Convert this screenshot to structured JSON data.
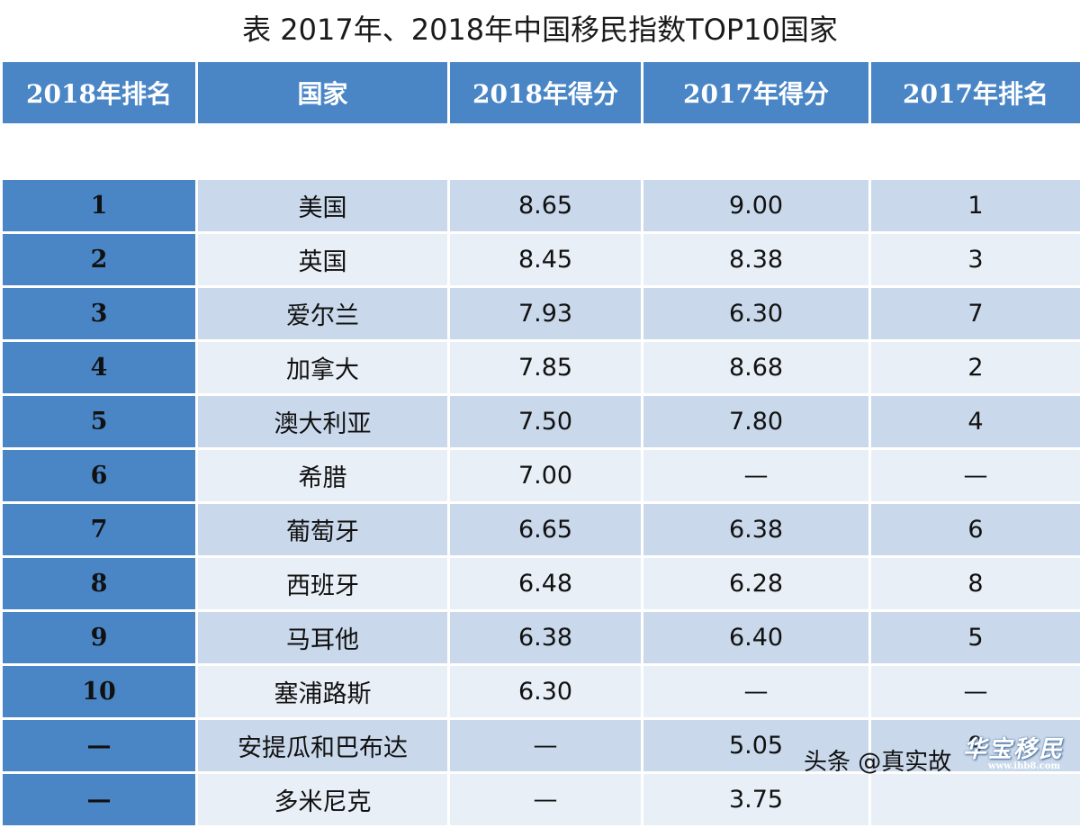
{
  "title": "表  2017年、2018年中国移民指数TOP10国家",
  "columns": [
    "2018年排名",
    "国家",
    "2018年得分",
    "2017年得分",
    "2017年排名"
  ],
  "rows": [
    [
      "1",
      "美国",
      "8.65",
      "9.00",
      "1"
    ],
    [
      "2",
      "英国",
      "8.45",
      "8.38",
      "3"
    ],
    [
      "3",
      "爱尔兰",
      "7.93",
      "6.30",
      "7"
    ],
    [
      "4",
      "加拿大",
      "7.85",
      "8.68",
      "2"
    ],
    [
      "5",
      "澳大利亚",
      "7.50",
      "7.80",
      "4"
    ],
    [
      "6",
      "希腊",
      "7.00",
      "—",
      "—"
    ],
    [
      "7",
      "葡萄牙",
      "6.65",
      "6.38",
      "6"
    ],
    [
      "8",
      "西班牙",
      "6.48",
      "6.28",
      "8"
    ],
    [
      "9",
      "马耳他",
      "6.38",
      "6.40",
      "5"
    ],
    [
      "10",
      "塞浦路斯",
      "6.30",
      "—",
      "—"
    ],
    [
      "—",
      "安提瓜和巴布达",
      "—",
      "5.05",
      "9"
    ],
    [
      "—",
      "多米尼克",
      "—",
      "3.75",
      ""
    ]
  ],
  "watermark": "头条 @真实故",
  "logo": {
    "text": "华宝移民",
    "sub": "www.ihb8.com"
  },
  "colors": {
    "header": "#4a86c6",
    "row_dark": "#c9d8ea",
    "row_light": "#e9eff7"
  }
}
